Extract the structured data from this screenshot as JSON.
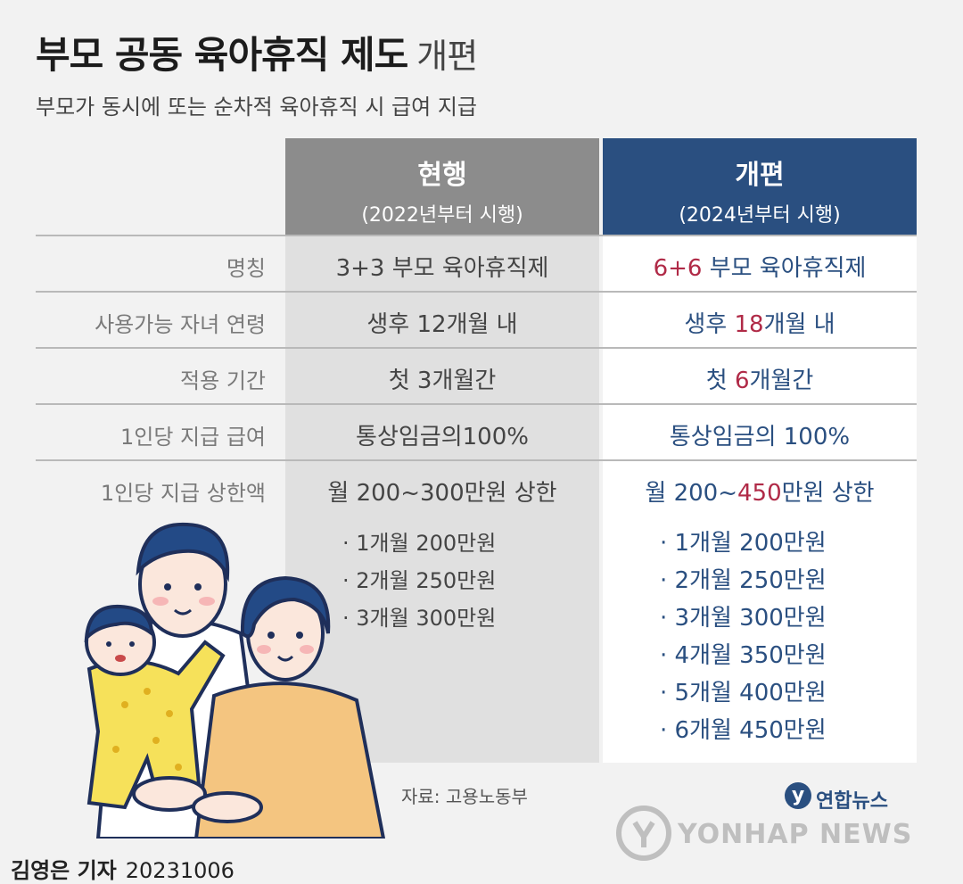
{
  "title": {
    "main": "부모 공동 육아휴직 제도",
    "suffix": "개편"
  },
  "subtitle": "부모가 동시에 또는 순차적 육아휴직 시 급여 지급",
  "columns": {
    "current": {
      "title": "현행",
      "note": "(2022년부터 시행)"
    },
    "new": {
      "title": "개편",
      "note": "(2024년부터 시행)"
    }
  },
  "rows": [
    {
      "label": "명칭",
      "current": "3+3 부모 육아휴직제",
      "new_hl": "6+6",
      "new_rest": " 부모 육아휴직제"
    },
    {
      "label": "사용가능 자녀 연령",
      "current": "생후 12개월 내",
      "new_pre": "생후 ",
      "new_hl": "18",
      "new_rest": "개월 내"
    },
    {
      "label": "적용 기간",
      "current": "첫 3개월간",
      "new_pre": "첫 ",
      "new_hl": "6",
      "new_rest": "개월간"
    },
    {
      "label": "1인당 지급 급여",
      "current": "통상임금의100%",
      "new": "통상임금의 100%"
    },
    {
      "label": "1인당 지급 상한액",
      "current": "월 200~300만원 상한",
      "new_pre": "월 200~",
      "new_hl": "450",
      "new_rest": "만원 상한"
    }
  ],
  "current_list": [
    "· 1개월 200만원",
    "· 2개월 250만원",
    "· 3개월 300만원"
  ],
  "new_list": [
    "· 1개월 200만원",
    "· 2개월 250만원",
    "· 3개월 300만원",
    "· 4개월 350만원",
    "· 5개월 400만원",
    "· 6개월 450만원"
  ],
  "source": "자료: 고용노동부",
  "brand": {
    "korean": "연합뉴스",
    "english": "YONHAP NEWS"
  },
  "credit": {
    "author": "김영은 기자",
    "date": "20231006"
  },
  "colors": {
    "header_current": "#8c8c8c",
    "header_new": "#2a4f80",
    "highlight": "#b02a47",
    "new_text": "#2a4f80"
  }
}
